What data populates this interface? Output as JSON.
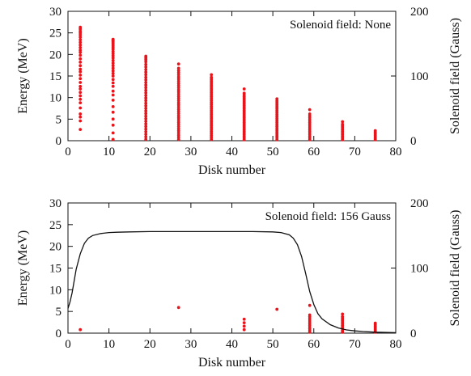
{
  "chart_data": [
    {
      "type": "scatter",
      "annotation": "Solenoid field: None",
      "xlabel": "Disk number",
      "ylabel": "Energy (MeV)",
      "y2label": "Solenoid field (Gauss)",
      "xlim": [
        0,
        80
      ],
      "ylim": [
        0,
        30
      ],
      "y2lim": [
        0,
        200
      ],
      "xticks": [
        "0",
        "10",
        "20",
        "30",
        "40",
        "50",
        "60",
        "70",
        "80"
      ],
      "yticks": [
        "0",
        "5",
        "10",
        "15",
        "20",
        "25",
        "30"
      ],
      "y2ticks": [
        "0",
        "100",
        "200"
      ],
      "point_color": "#e8141b",
      "series": [
        {
          "x": [
            3,
            3,
            3,
            3,
            3,
            3,
            3,
            3,
            3,
            3,
            3,
            3,
            3,
            3,
            3,
            3,
            3,
            3,
            3,
            3,
            3,
            3,
            3,
            3,
            3,
            3,
            3,
            3,
            3,
            3,
            3,
            3,
            11,
            11,
            11,
            11,
            11,
            11,
            11,
            11,
            11,
            11,
            11,
            11,
            11,
            11,
            11,
            11,
            11,
            11,
            11,
            11,
            11,
            11,
            11,
            11,
            11,
            11,
            11,
            11,
            11,
            11,
            11,
            11,
            19,
            19,
            19,
            19,
            19,
            19,
            19,
            19,
            19,
            19,
            19,
            19,
            19,
            19,
            19,
            19,
            19,
            19,
            19,
            19,
            19,
            19,
            19,
            19,
            19,
            19,
            19,
            19,
            19,
            19,
            19,
            19,
            19,
            19,
            27,
            27,
            27,
            27,
            27,
            27,
            27,
            27,
            27,
            27,
            27,
            27,
            27,
            27,
            27,
            27,
            27,
            27,
            27,
            27,
            27,
            27,
            27,
            27,
            27,
            27,
            27,
            27,
            27,
            27,
            27,
            27,
            27,
            27,
            27,
            35,
            35,
            35,
            35,
            35,
            35,
            35,
            35,
            35,
            35,
            35,
            35,
            35,
            35,
            35,
            35,
            35,
            35,
            35,
            35,
            35,
            35,
            35,
            35,
            35,
            35,
            35,
            35,
            35,
            35,
            35,
            35,
            35,
            35,
            43,
            43,
            43,
            43,
            43,
            43,
            43,
            43,
            43,
            43,
            43,
            43,
            43,
            43,
            43,
            43,
            43,
            43,
            43,
            43,
            43,
            43,
            43,
            43,
            43,
            43,
            43,
            43,
            43,
            51,
            51,
            51,
            51,
            51,
            51,
            51,
            51,
            51,
            51,
            51,
            51,
            51,
            51,
            51,
            51,
            51,
            51,
            51,
            51,
            51,
            51,
            59,
            59,
            59,
            59,
            59,
            59,
            59,
            59,
            59,
            59,
            59,
            59,
            59,
            59,
            59,
            59,
            59,
            67,
            67,
            67,
            67,
            67,
            67,
            67,
            67,
            67,
            67,
            67,
            75,
            75,
            75,
            75,
            75,
            75,
            75
          ],
          "y": [
            2.6,
            4.6,
            5.5,
            6.2,
            7.6,
            8.8,
            9.6,
            10.4,
            11.2,
            12.0,
            12.6,
            13.5,
            14.4,
            15.2,
            16.0,
            16.6,
            17.4,
            18.2,
            19.0,
            19.8,
            20.5,
            21.0,
            21.6,
            22.2,
            22.8,
            23.4,
            24.0,
            24.5,
            25.0,
            25.4,
            25.9,
            26.3,
            0.3,
            1.8,
            3.6,
            5.0,
            6.6,
            7.9,
            9.4,
            10.6,
            11.5,
            12.6,
            13.4,
            14.2,
            15.0,
            15.6,
            16.2,
            16.8,
            17.4,
            18.0,
            18.6,
            19.2,
            19.7,
            20.2,
            20.7,
            21.2,
            21.6,
            22.0,
            22.4,
            22.7,
            23.0,
            23.2,
            23.4,
            23.5,
            0.3,
            0.9,
            1.5,
            2.1,
            2.7,
            3.3,
            3.9,
            4.5,
            5.1,
            5.7,
            6.3,
            6.9,
            7.5,
            8.1,
            8.7,
            9.3,
            9.9,
            10.5,
            11.1,
            11.7,
            12.3,
            12.9,
            13.5,
            14.1,
            14.7,
            15.3,
            15.9,
            16.5,
            17.1,
            17.7,
            18.3,
            18.8,
            19.2,
            19.6,
            0.3,
            0.8,
            1.3,
            1.8,
            2.3,
            2.8,
            3.3,
            3.8,
            4.3,
            4.8,
            5.3,
            5.8,
            6.3,
            6.8,
            7.3,
            7.8,
            8.3,
            8.8,
            9.3,
            9.8,
            10.3,
            10.8,
            11.3,
            11.8,
            12.3,
            12.8,
            13.3,
            13.8,
            14.3,
            14.8,
            15.3,
            15.8,
            16.3,
            16.8,
            17.8,
            0.3,
            0.75,
            1.2,
            1.65,
            2.1,
            2.55,
            3.0,
            3.45,
            3.9,
            4.35,
            4.8,
            5.25,
            5.7,
            6.15,
            6.6,
            7.05,
            7.5,
            7.95,
            8.4,
            8.85,
            9.3,
            9.75,
            10.2,
            10.65,
            11.1,
            11.55,
            12.0,
            12.45,
            12.9,
            13.35,
            13.8,
            14.25,
            14.7,
            15.3,
            0.2,
            0.6,
            1.0,
            1.4,
            1.8,
            2.2,
            2.6,
            3.0,
            3.4,
            3.8,
            4.2,
            4.6,
            5.0,
            5.4,
            5.8,
            6.2,
            6.6,
            7.0,
            7.4,
            7.8,
            8.2,
            8.6,
            9.0,
            9.4,
            9.8,
            10.2,
            10.6,
            11.0,
            12.0,
            0.2,
            0.65,
            1.1,
            1.55,
            2.0,
            2.45,
            2.9,
            3.35,
            3.8,
            4.25,
            4.7,
            5.15,
            5.6,
            6.05,
            6.5,
            6.95,
            7.4,
            7.85,
            8.3,
            8.75,
            9.2,
            9.7,
            0.2,
            0.6,
            1.0,
            1.4,
            1.8,
            2.2,
            2.6,
            3.0,
            3.4,
            3.8,
            4.2,
            4.6,
            5.0,
            5.4,
            5.8,
            6.2,
            7.2,
            0.2,
            0.6,
            1.0,
            1.4,
            1.8,
            2.2,
            2.6,
            3.0,
            3.4,
            3.8,
            4.4,
            0.2,
            0.55,
            0.9,
            1.25,
            1.6,
            1.95,
            2.3
          ]
        }
      ]
    },
    {
      "type": "scatter",
      "annotation": "Solenoid field: 156 Gauss",
      "xlabel": "Disk number",
      "ylabel": "Energy (MeV)",
      "y2label": "Solenoid field (Gauss)",
      "xlim": [
        0,
        80
      ],
      "ylim": [
        0,
        30
      ],
      "y2lim": [
        0,
        200
      ],
      "xticks": [
        "0",
        "10",
        "20",
        "30",
        "40",
        "50",
        "60",
        "70",
        "80"
      ],
      "yticks": [
        "0",
        "5",
        "10",
        "15",
        "20",
        "25",
        "30"
      ],
      "y2ticks": [
        "0",
        "100",
        "200"
      ],
      "point_color": "#e8141b",
      "line_color": "#111111",
      "series": [
        {
          "x": [
            3,
            27,
            43,
            43,
            43,
            43,
            51,
            59,
            59,
            59,
            59,
            59,
            59,
            59,
            59,
            59,
            59,
            59,
            59,
            67,
            67,
            67,
            67,
            67,
            67,
            67,
            67,
            67,
            67,
            67,
            75,
            75,
            75,
            75,
            75,
            75,
            75
          ],
          "y": [
            0.8,
            5.9,
            0.8,
            1.6,
            2.4,
            3.2,
            5.5,
            0.2,
            0.6,
            1.0,
            1.4,
            1.8,
            2.2,
            2.6,
            3.0,
            3.4,
            3.8,
            4.2,
            6.4,
            0.2,
            0.6,
            1.0,
            1.4,
            1.8,
            2.2,
            2.6,
            3.0,
            3.4,
            3.8,
            4.4,
            0.2,
            0.55,
            0.9,
            1.25,
            1.6,
            1.95,
            2.3
          ]
        },
        {
          "axis": "y2",
          "x": [
            0,
            0.5,
            1,
            1.5,
            2,
            3,
            4,
            5,
            6,
            8,
            10,
            12,
            15,
            20,
            25,
            30,
            35,
            40,
            45,
            50,
            52,
            54,
            55,
            56,
            57,
            58,
            59,
            60,
            61,
            62,
            64,
            66,
            68,
            70,
            72,
            75,
            78,
            80
          ],
          "y": [
            38,
            48,
            62,
            80,
            98,
            122,
            138,
            146,
            150,
            153,
            154.5,
            155,
            155.5,
            156,
            156,
            156,
            156,
            156,
            156,
            155.5,
            154.5,
            151,
            146,
            136,
            118,
            92,
            64,
            44,
            30,
            22,
            13,
            8,
            5,
            3.5,
            2.5,
            1.5,
            1,
            0.8
          ]
        }
      ]
    }
  ]
}
